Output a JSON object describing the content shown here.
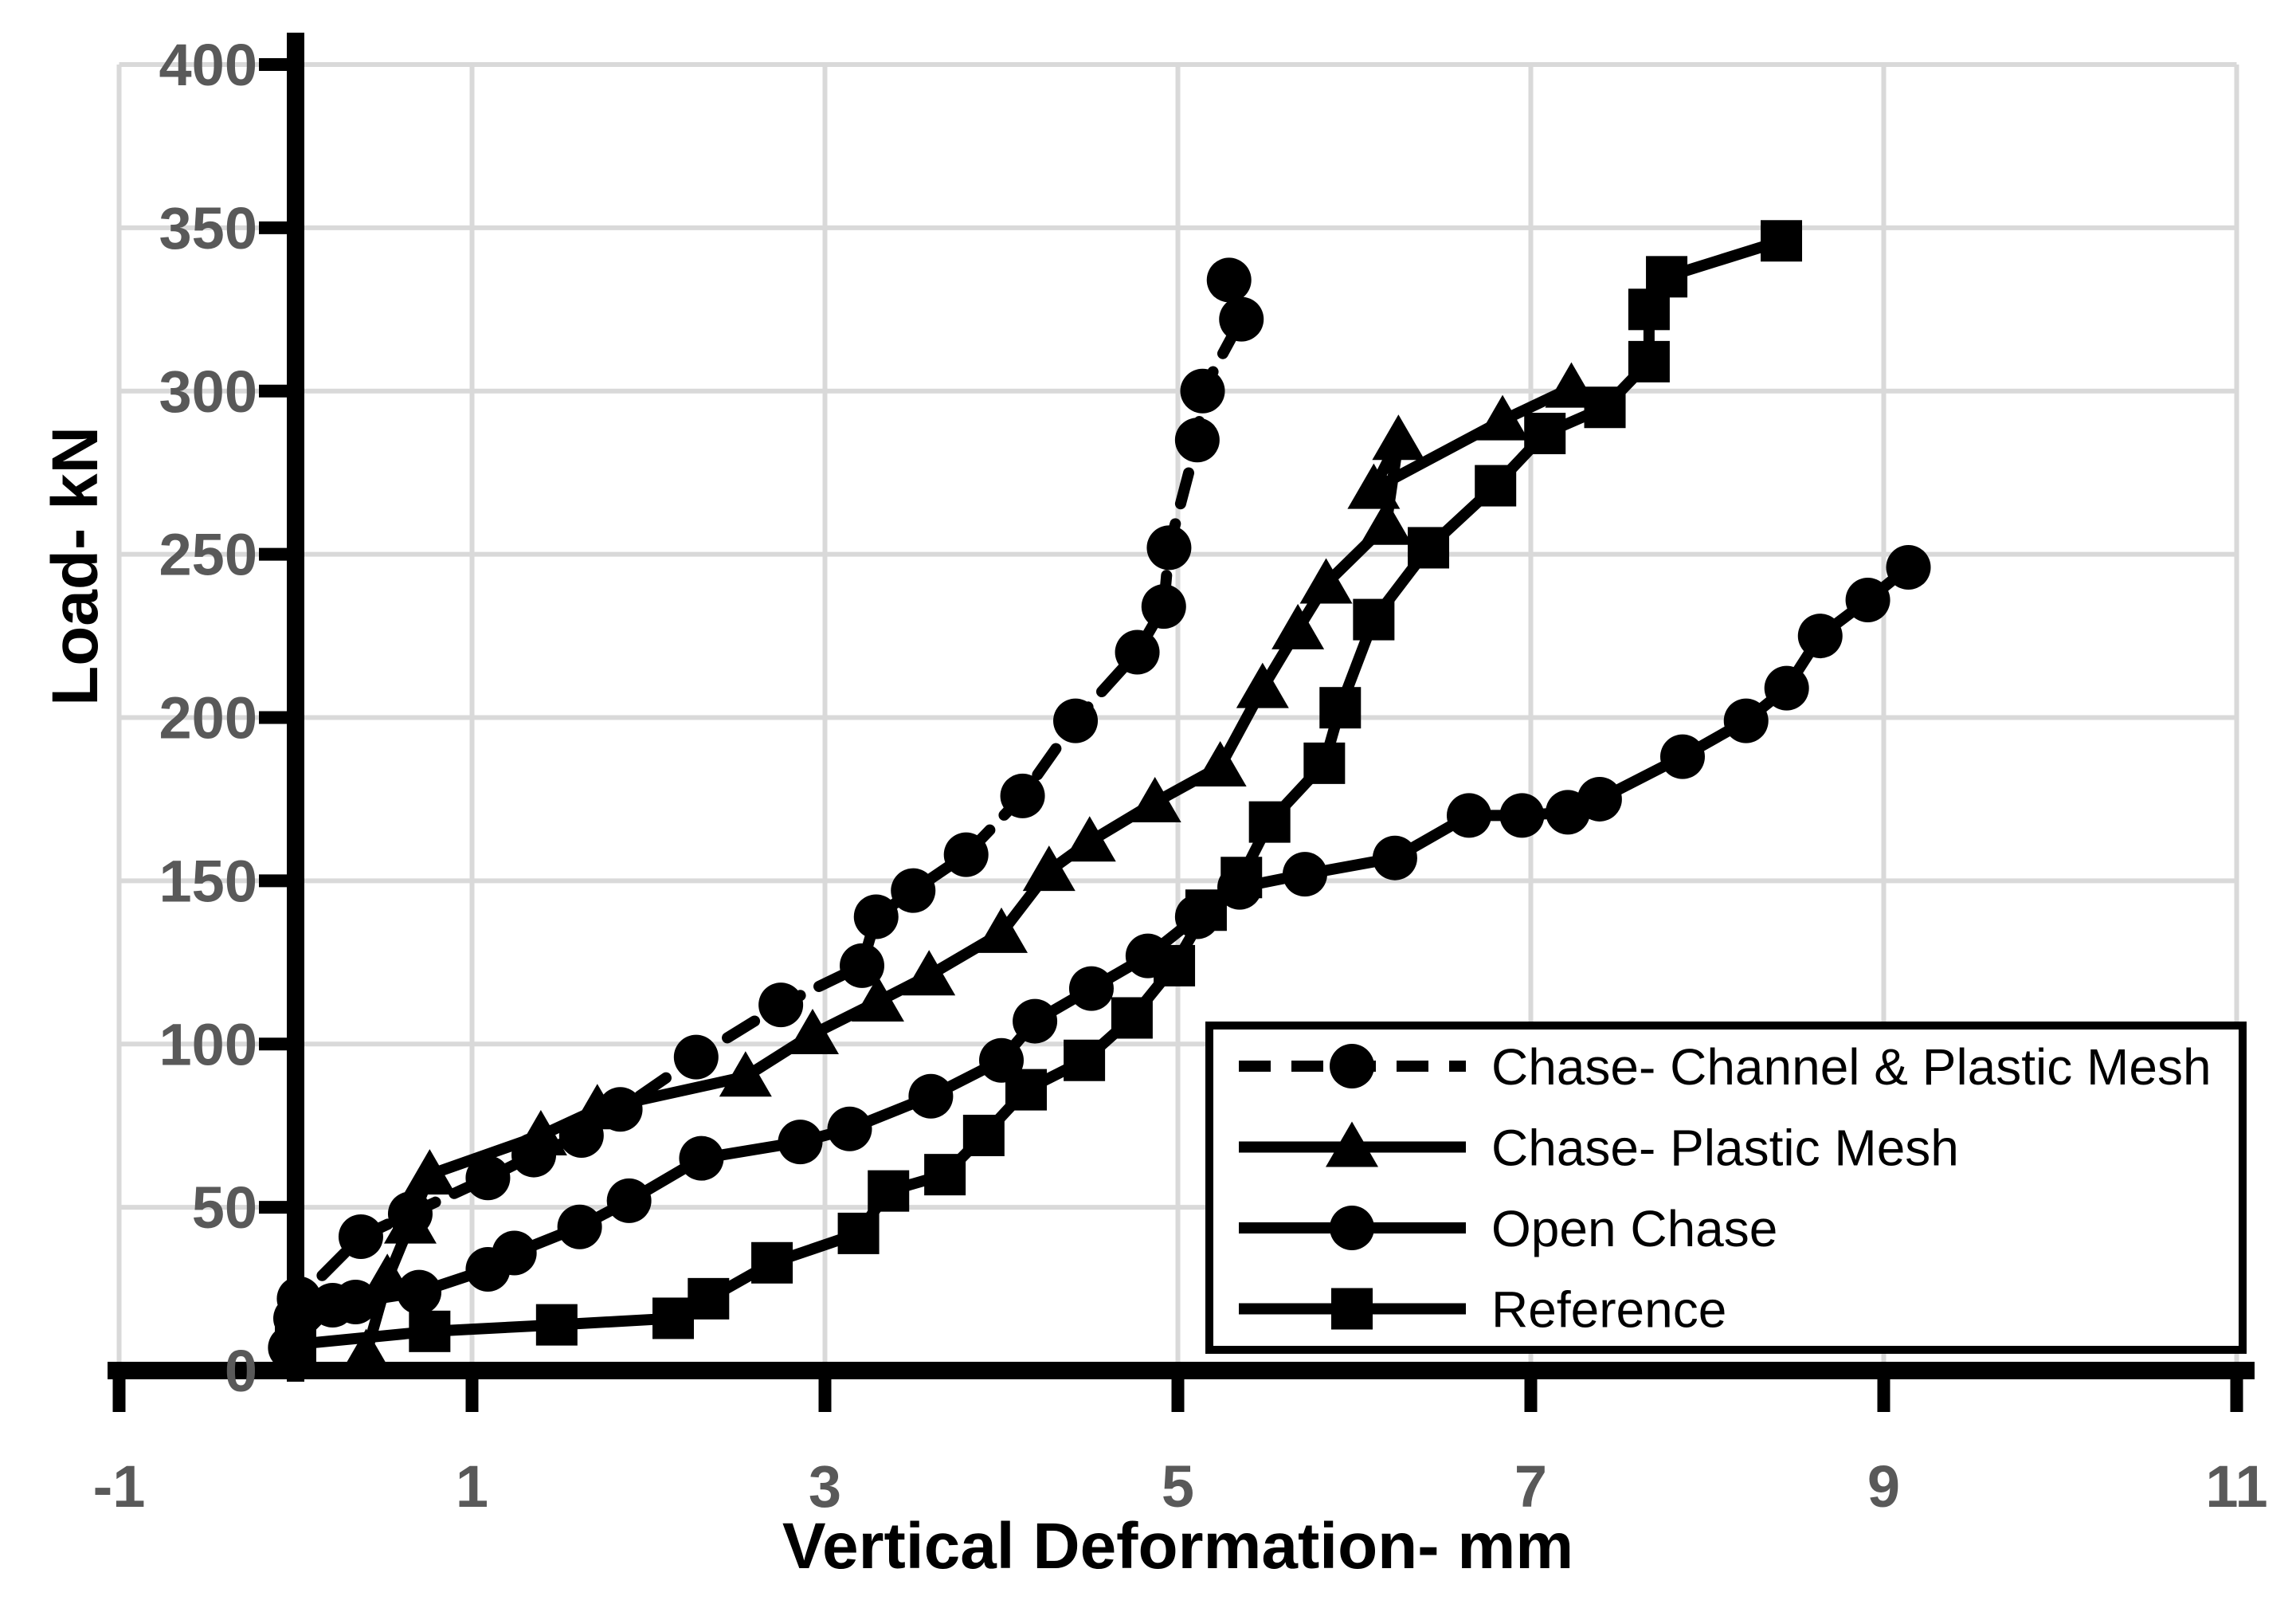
{
  "chart_data": {
    "type": "line",
    "title": "",
    "xlabel": "Vertical Deformation- mm",
    "ylabel": "Load- kN",
    "xlim": [
      -1,
      11
    ],
    "ylim": [
      0,
      400
    ],
    "x_ticks": [
      -1,
      1,
      3,
      5,
      7,
      9,
      11
    ],
    "y_ticks": [
      0,
      50,
      100,
      150,
      200,
      250,
      300,
      350,
      400
    ],
    "grid": true,
    "grid_x_lines": [
      -1,
      1,
      3,
      5,
      7,
      9,
      11
    ],
    "legend_position": "inside-bottom-right",
    "series": [
      {
        "name": "Chase- Channel & Plastic Mesh",
        "marker": "circle",
        "line": "dashed",
        "points": [
          [
            0.0,
            16
          ],
          [
            0.02,
            22
          ],
          [
            0.37,
            41
          ],
          [
            0.65,
            48
          ],
          [
            1.09,
            59
          ],
          [
            1.35,
            66
          ],
          [
            1.62,
            72
          ],
          [
            1.84,
            80
          ],
          [
            2.27,
            96
          ],
          [
            2.75,
            112
          ],
          [
            3.21,
            124
          ],
          [
            3.29,
            139
          ],
          [
            3.5,
            147
          ],
          [
            3.8,
            158
          ],
          [
            4.12,
            176
          ],
          [
            4.42,
            199
          ],
          [
            4.77,
            220
          ],
          [
            4.92,
            234
          ],
          [
            4.95,
            252
          ],
          [
            5.11,
            285
          ],
          [
            5.14,
            300
          ],
          [
            5.36,
            322
          ],
          [
            5.29,
            334
          ]
        ]
      },
      {
        "name": "Chase- Plastic Mesh",
        "marker": "triangle",
        "line": "solid",
        "points": [
          [
            0.4,
            5
          ],
          [
            0.52,
            28
          ],
          [
            0.65,
            45
          ],
          [
            0.76,
            60
          ],
          [
            1.39,
            72
          ],
          [
            1.71,
            80
          ],
          [
            2.55,
            90
          ],
          [
            2.93,
            103
          ],
          [
            3.3,
            113
          ],
          [
            3.59,
            121
          ],
          [
            4.0,
            134
          ],
          [
            4.27,
            153
          ],
          [
            4.5,
            162
          ],
          [
            4.87,
            174
          ],
          [
            5.24,
            185
          ],
          [
            5.48,
            209
          ],
          [
            5.68,
            227
          ],
          [
            5.84,
            241
          ],
          [
            6.18,
            259
          ],
          [
            6.25,
            285
          ],
          [
            6.11,
            270
          ],
          [
            6.84,
            291
          ],
          [
            7.23,
            301
          ]
        ]
      },
      {
        "name": "Open Chase",
        "marker": "circle",
        "line": "solid",
        "points": [
          [
            -0.03,
            7
          ],
          [
            0.21,
            20
          ],
          [
            0.34,
            21
          ],
          [
            0.7,
            24
          ],
          [
            1.09,
            31
          ],
          [
            1.24,
            36
          ],
          [
            1.61,
            44
          ],
          [
            1.89,
            52
          ],
          [
            2.3,
            65
          ],
          [
            2.86,
            70
          ],
          [
            3.14,
            74
          ],
          [
            3.6,
            84
          ],
          [
            4.0,
            95
          ],
          [
            4.19,
            107
          ],
          [
            4.51,
            117
          ],
          [
            4.83,
            127
          ],
          [
            5.11,
            139
          ],
          [
            5.35,
            148
          ],
          [
            5.72,
            152
          ],
          [
            6.23,
            157
          ],
          [
            6.65,
            170
          ],
          [
            6.95,
            170
          ],
          [
            7.21,
            171
          ],
          [
            7.39,
            175
          ],
          [
            7.86,
            188
          ],
          [
            8.22,
            199
          ],
          [
            8.45,
            209
          ],
          [
            8.64,
            225
          ],
          [
            8.91,
            236
          ],
          [
            9.14,
            246
          ]
        ]
      },
      {
        "name": "Reference",
        "marker": "square",
        "line": "solid",
        "points": [
          [
            0.0,
            8
          ],
          [
            0.76,
            12
          ],
          [
            1.48,
            14
          ],
          [
            2.14,
            16
          ],
          [
            2.34,
            22
          ],
          [
            2.7,
            33
          ],
          [
            3.19,
            42
          ],
          [
            3.36,
            55
          ],
          [
            3.68,
            60
          ],
          [
            3.9,
            72
          ],
          [
            4.14,
            86
          ],
          [
            4.47,
            95
          ],
          [
            4.74,
            108
          ],
          [
            4.98,
            124
          ],
          [
            5.16,
            141
          ],
          [
            5.36,
            151
          ],
          [
            5.52,
            168
          ],
          [
            5.83,
            186
          ],
          [
            5.92,
            203
          ],
          [
            6.11,
            230
          ],
          [
            6.42,
            252
          ],
          [
            6.8,
            271
          ],
          [
            7.08,
            287
          ],
          [
            7.42,
            295
          ],
          [
            7.67,
            309
          ],
          [
            7.67,
            325
          ],
          [
            7.77,
            335
          ],
          [
            8.42,
            346
          ]
        ]
      }
    ]
  },
  "colors": {
    "series": "#000000",
    "grid": "#d9d9d9",
    "axis": "#000000",
    "tick_label": "#595959",
    "axis_title": "#000000",
    "legend_border": "#000000",
    "legend_text": "#000000",
    "background": "#ffffff"
  }
}
